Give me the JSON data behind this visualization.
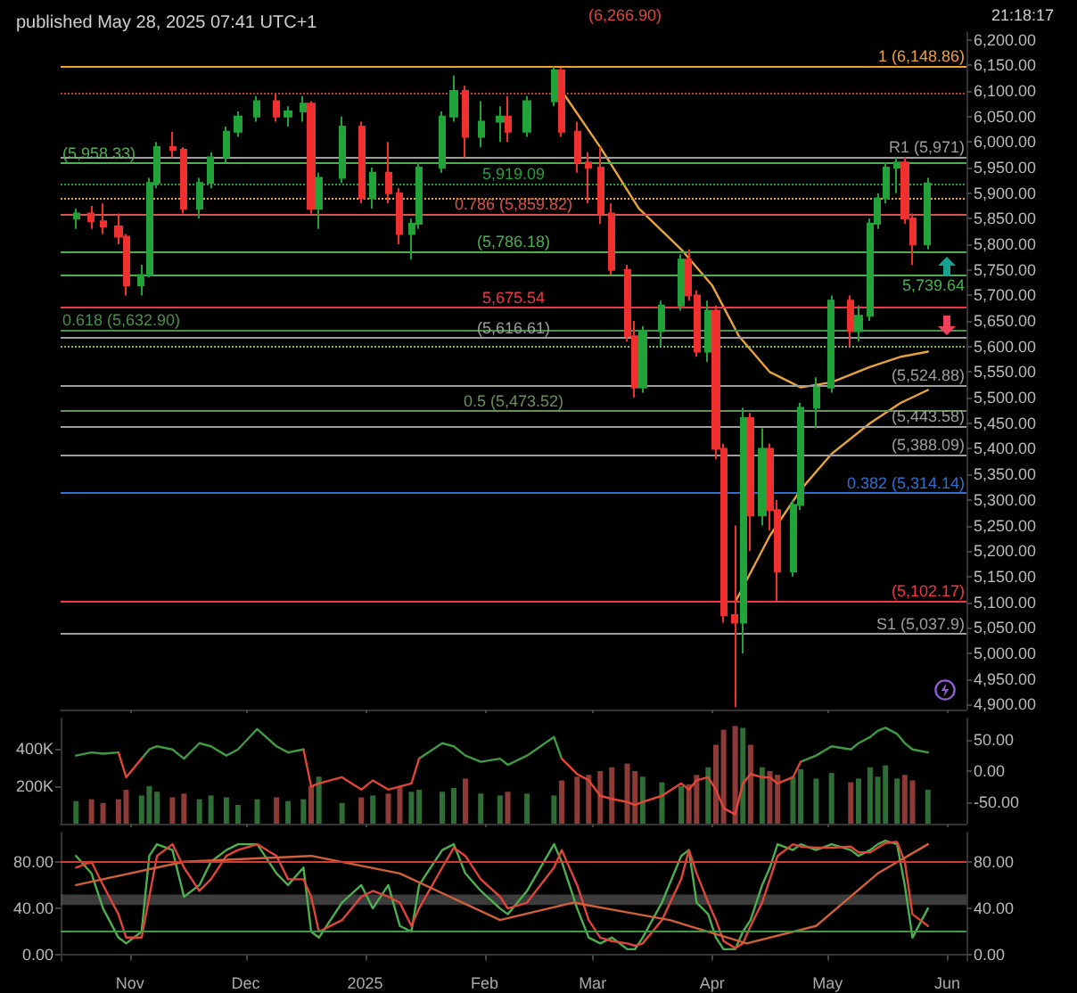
{
  "chart_data": [
    {
      "type": "candlestick",
      "title": "published May 28, 2025 07:41 UTC+1",
      "annotations": [
        "(6,266.90)",
        "21:18:17"
      ],
      "x": [
        "2024-10-18",
        "2024-10-22",
        "2024-10-25",
        "2024-10-29",
        "2024-10-31",
        "2024-11-04",
        "2024-11-06",
        "2024-11-08",
        "2024-11-12",
        "2024-11-15",
        "2024-11-19",
        "2024-11-22",
        "2024-11-26",
        "2024-11-29",
        "2024-12-04",
        "2024-12-09",
        "2024-12-12",
        "2024-12-16",
        "2024-12-18",
        "2024-12-20",
        "2024-12-26",
        "2024-12-31",
        "2025-01-03",
        "2025-01-07",
        "2025-01-10",
        "2025-01-13",
        "2025-01-15",
        "2025-01-21",
        "2025-01-24",
        "2025-01-27",
        "2025-01-31",
        "2025-02-05",
        "2025-02-07",
        "2025-02-12",
        "2025-02-19",
        "2025-02-21",
        "2025-02-25",
        "2025-02-28",
        "2025-03-03",
        "2025-03-06",
        "2025-03-10",
        "2025-03-12",
        "2025-03-14",
        "2025-03-19",
        "2025-03-24",
        "2025-03-26",
        "2025-03-28",
        "2025-03-31",
        "2025-04-02",
        "2025-04-04",
        "2025-04-07",
        "2025-04-09",
        "2025-04-11",
        "2025-04-14",
        "2025-04-16",
        "2025-04-18",
        "2025-04-22",
        "2025-04-24",
        "2025-04-28",
        "2025-05-02",
        "2025-05-07",
        "2025-05-09",
        "2025-05-12",
        "2025-05-14",
        "2025-05-16",
        "2025-05-19",
        "2025-05-21",
        "2025-05-23",
        "2025-05-27"
      ],
      "xlim": [
        "2024-10-14",
        "2025-06-06"
      ],
      "xticks": [
        {
          "value": "2024-11-01",
          "label": null
        },
        {
          "value": "2024-12-01",
          "label": null
        },
        {
          "value": "2025-01-01",
          "label": null
        },
        {
          "value": "2025-02-01",
          "label": null
        },
        {
          "value": "2025-03-01",
          "label": null
        },
        {
          "value": "2025-04-01",
          "label": null
        },
        {
          "value": "2025-05-01",
          "label": null
        },
        {
          "value": "2025-06-01",
          "label": null
        }
      ],
      "ylim": [
        4890,
        6215
      ],
      "yticks": [
        {
          "value": 4900,
          "label": "4,900.00"
        },
        {
          "value": 4950,
          "label": "4,950.00"
        },
        {
          "value": 5000,
          "label": "5,000.00"
        },
        {
          "value": 5050,
          "label": "5,050.00"
        },
        {
          "value": 5100,
          "label": "5,100.00"
        },
        {
          "value": 5150,
          "label": "5,150.00"
        },
        {
          "value": 5200,
          "label": "5,200.00"
        },
        {
          "value": 5250,
          "label": "5,250.00"
        },
        {
          "value": 5300,
          "label": "5,300.00"
        },
        {
          "value": 5350,
          "label": "5,350.00"
        },
        {
          "value": 5400,
          "label": "5,400.00"
        },
        {
          "value": 5450,
          "label": "5,450.00"
        },
        {
          "value": 5500,
          "label": "5,500.00"
        },
        {
          "value": 5550,
          "label": "5,550.00"
        },
        {
          "value": 5600,
          "label": "5,600.00"
        },
        {
          "value": 5650,
          "label": "5,650.00"
        },
        {
          "value": 5700,
          "label": "5,700.00"
        },
        {
          "value": 5750,
          "label": "5,750.00"
        },
        {
          "value": 5800,
          "label": "5,800.00"
        },
        {
          "value": 5850,
          "label": "5,850.00"
        },
        {
          "value": 5900,
          "label": "5,900.00"
        },
        {
          "value": 5950,
          "label": "5,950.00"
        },
        {
          "value": 6000,
          "label": "6,000.00"
        },
        {
          "value": 6050,
          "label": "6,050.00"
        },
        {
          "value": 6100,
          "label": "6,100.00"
        },
        {
          "value": 6150,
          "label": "6,150.00"
        },
        {
          "value": 6200,
          "label": "6,200.00"
        }
      ],
      "tick_labels": "y",
      "ref_lines": [
        {
          "axis": "y",
          "value": 5919.09,
          "label": "5,919.09",
          "color": "#22a33a",
          "line_style": "dotted"
        },
        {
          "axis": "y",
          "value": 5739.64,
          "label": "5,739.64",
          "color": "#4caf50",
          "line_style": "solid"
        },
        {
          "axis": "y",
          "value": 5675.54,
          "label": "5,675.54",
          "color": "#f23645",
          "line_style": "solid"
        },
        {
          "axis": "y",
          "value": 5971,
          "label": "R1 (5,971)",
          "color": "#9e9e9e",
          "line_style": "solid"
        },
        {
          "axis": "y",
          "value": 5958.33,
          "label": "(5,958.33)",
          "color": "#4caf50",
          "line_style": "solid"
        },
        {
          "axis": "y",
          "value": 5786.18,
          "label": "(5,786.18)",
          "color": "#4caf50",
          "line_style": "solid"
        },
        {
          "axis": "y",
          "value": 5616.61,
          "label": "(5,616.61)",
          "color": "#9e9e9e",
          "line_style": "solid"
        },
        {
          "axis": "y",
          "value": 5524.88,
          "label": "(5,524.88)",
          "color": "#9e9e9e",
          "line_style": "solid"
        },
        {
          "axis": "y",
          "value": 5443.58,
          "label": "(5,443.58)",
          "color": "#9e9e9e",
          "line_style": "solid"
        },
        {
          "axis": "y",
          "value": 5388.09,
          "label": "(5,388.09)",
          "color": "#9e9e9e",
          "line_style": "solid"
        },
        {
          "axis": "y",
          "value": 5102.17,
          "label": "(5,102.17)",
          "color": "#f23645",
          "line_style": "solid"
        },
        {
          "axis": "y",
          "value": 5037.9,
          "label": "S1 (5,037.9)",
          "color": "#9e9e9e",
          "line_style": "solid"
        },
        {
          "axis": "y",
          "value": 6148.86,
          "label": "1 (6,148.86)",
          "color": "#f0a030",
          "line_style": "solid"
        },
        {
          "axis": "y",
          "value": 5859.82,
          "label": "0.786 (5,859.82)",
          "color": "#d9534f",
          "line_style": "solid"
        },
        {
          "axis": "y",
          "value": 5632.9,
          "label": "0.618 (5,632.90)",
          "color": "#4a8f4a",
          "line_style": "solid"
        },
        {
          "axis": "y",
          "value": 5473.52,
          "label": "0.5 (5,473.52)",
          "color": "#6a8f5a",
          "line_style": "solid"
        },
        {
          "axis": "y",
          "value": 5314.14,
          "label": "0.382 (5,314.14)",
          "color": "#2f6fd0",
          "line_style": "solid"
        },
        {
          "axis": "y",
          "value": 6095,
          "label": null,
          "color": "#c0392b",
          "line_style": "dotted"
        },
        {
          "axis": "y",
          "value": 5890,
          "label": null,
          "color": "#e6a23c",
          "line_style": "dotted"
        },
        {
          "axis": "y",
          "value": 5600,
          "label": null,
          "color": "#7cb342",
          "line_style": "dotted"
        }
      ],
      "series": [
        {
          "type": "candlestick",
          "ohlc": [
            [
              5850,
              5870,
              5830,
              5860
            ],
            [
              5860,
              5875,
              5830,
              5845
            ],
            [
              5845,
              5880,
              5820,
              5835
            ],
            [
              5835,
              5860,
              5800,
              5815
            ],
            [
              5815,
              5820,
              5700,
              5720
            ],
            [
              5720,
              5760,
              5700,
              5740
            ],
            [
              5740,
              5930,
              5735,
              5920
            ],
            [
              5920,
              6000,
              5910,
              5990
            ],
            [
              5990,
              6020,
              5970,
              5985
            ],
            [
              5985,
              5990,
              5860,
              5870
            ],
            [
              5870,
              5930,
              5850,
              5920
            ],
            [
              5920,
              5980,
              5910,
              5970
            ],
            [
              5970,
              6030,
              5960,
              6020
            ],
            [
              6020,
              6060,
              6010,
              6050
            ],
            [
              6050,
              6090,
              6040,
              6080
            ],
            [
              6080,
              6095,
              6040,
              6050
            ],
            [
              6050,
              6070,
              6030,
              6060
            ],
            [
              6060,
              6090,
              6040,
              6075
            ],
            [
              6075,
              6080,
              5860,
              5870
            ],
            [
              5870,
              5940,
              5830,
              5930
            ],
            [
              5930,
              6050,
              5920,
              6030
            ],
            [
              6030,
              6040,
              5880,
              5890
            ],
            [
              5890,
              5950,
              5870,
              5940
            ],
            [
              5940,
              6000,
              5880,
              5900
            ],
            [
              5900,
              5910,
              5800,
              5820
            ],
            [
              5820,
              5850,
              5770,
              5840
            ],
            [
              5840,
              5960,
              5830,
              5950
            ],
            [
              5950,
              6060,
              5940,
              6050
            ],
            [
              6050,
              6130,
              6040,
              6100
            ],
            [
              6100,
              6110,
              5970,
              6010
            ],
            [
              6010,
              6080,
              5990,
              6040
            ],
            [
              6040,
              6070,
              6000,
              6050
            ],
            [
              6050,
              6090,
              6000,
              6020
            ],
            [
              6020,
              6090,
              6010,
              6080
            ],
            [
              6080,
              6147,
              6070,
              6140
            ],
            [
              6140,
              6145,
              6010,
              6020
            ],
            [
              6020,
              6040,
              5940,
              5960
            ],
            [
              5960,
              5980,
              5880,
              5950
            ],
            [
              5950,
              5990,
              5840,
              5860
            ],
            [
              5860,
              5880,
              5740,
              5750
            ],
            [
              5750,
              5760,
              5610,
              5620
            ],
            [
              5620,
              5650,
              5500,
              5520
            ],
            [
              5520,
              5640,
              5510,
              5630
            ],
            [
              5630,
              5690,
              5600,
              5680
            ],
            [
              5680,
              5780,
              5670,
              5770
            ],
            [
              5770,
              5790,
              5690,
              5700
            ],
            [
              5700,
              5710,
              5580,
              5590
            ],
            [
              5590,
              5690,
              5570,
              5670
            ],
            [
              5670,
              5680,
              5380,
              5400
            ],
            [
              5400,
              5410,
              5060,
              5075
            ],
            [
              5075,
              5250,
              4895,
              5060
            ],
            [
              5060,
              5480,
              5000,
              5460
            ],
            [
              5460,
              5470,
              5200,
              5270
            ],
            [
              5270,
              5440,
              5250,
              5400
            ],
            [
              5400,
              5410,
              5240,
              5280
            ],
            [
              5280,
              5300,
              5100,
              5160
            ],
            [
              5160,
              5300,
              5150,
              5290
            ],
            [
              5290,
              5490,
              5280,
              5480
            ],
            [
              5480,
              5540,
              5440,
              5520
            ],
            [
              5520,
              5700,
              5510,
              5690
            ],
            [
              5690,
              5700,
              5600,
              5630
            ],
            [
              5630,
              5680,
              5610,
              5660
            ],
            [
              5660,
              5850,
              5650,
              5840
            ],
            [
              5840,
              5900,
              5830,
              5890
            ],
            [
              5890,
              5960,
              5880,
              5950
            ],
            [
              5950,
              5970,
              5900,
              5960
            ],
            [
              5960,
              5970,
              5840,
              5850
            ],
            [
              5850,
              5860,
              5760,
              5800
            ],
            [
              5800,
              5930,
              5790,
              5919
            ]
          ],
          "colors": [
            "#22a33a",
            "#f0302e",
            "#f0302e",
            "#f0302e",
            "#f0302e",
            "#22a33a",
            "#22a33a",
            "#22a33a",
            "#f0302e",
            "#f0302e",
            "#22a33a",
            "#22a33a",
            "#22a33a",
            "#22a33a",
            "#22a33a",
            "#f0302e",
            "#22a33a",
            "#22a33a",
            "#f0302e",
            "#22a33a",
            "#22a33a",
            "#f0302e",
            "#22a33a",
            "#f0302e",
            "#f0302e",
            "#22a33a",
            "#22a33a",
            "#22a33a",
            "#22a33a",
            "#f0302e",
            "#22a33a",
            "#22a33a",
            "#f0302e",
            "#22a33a",
            "#22a33a",
            "#f0302e",
            "#f0302e",
            "#f0302e",
            "#f0302e",
            "#f0302e",
            "#f0302e",
            "#f0302e",
            "#22a33a",
            "#22a33a",
            "#22a33a",
            "#f0302e",
            "#f0302e",
            "#22a33a",
            "#f0302e",
            "#f0302e",
            "#f0302e",
            "#22a33a",
            "#f0302e",
            "#22a33a",
            "#f0302e",
            "#f0302e",
            "#22a33a",
            "#22a33a",
            "#22a33a",
            "#22a33a",
            "#f0302e",
            "#22a33a",
            "#22a33a",
            "#22a33a",
            "#22a33a",
            "#22a33a",
            "#f0302e",
            "#f0302e",
            "#22a33a"
          ]
        },
        {
          "type": "line",
          "color": "#e8a33a",
          "x": [
            "2025-02-21",
            "2025-03-03",
            "2025-03-13",
            "2025-03-24",
            "2025-04-01",
            "2025-04-08",
            "2025-04-16",
            "2025-04-24",
            "2025-05-02",
            "2025-05-12",
            "2025-05-20",
            "2025-05-27"
          ],
          "values": [
            6100,
            5990,
            5870,
            5790,
            5720,
            5620,
            5550,
            5520,
            5530,
            5560,
            5580,
            5590
          ]
        },
        {
          "type": "line",
          "color": "#e8a33a",
          "x": [
            "2025-04-07",
            "2025-04-16",
            "2025-04-24",
            "2025-05-02",
            "2025-05-12",
            "2025-05-20",
            "2025-05-27"
          ],
          "values": [
            5100,
            5230,
            5320,
            5390,
            5450,
            5490,
            5515
          ]
        }
      ]
    },
    {
      "type": "bar",
      "x": [
        "2024-10-18",
        "2024-10-22",
        "2024-10-25",
        "2024-10-29",
        "2024-10-31",
        "2024-11-04",
        "2024-11-06",
        "2024-11-08",
        "2024-11-12",
        "2024-11-15",
        "2024-11-19",
        "2024-11-22",
        "2024-11-26",
        "2024-11-29",
        "2024-12-04",
        "2024-12-09",
        "2024-12-12",
        "2024-12-16",
        "2024-12-18",
        "2024-12-20",
        "2024-12-26",
        "2024-12-31",
        "2025-01-03",
        "2025-01-07",
        "2025-01-10",
        "2025-01-13",
        "2025-01-15",
        "2025-01-21",
        "2025-01-24",
        "2025-01-27",
        "2025-01-31",
        "2025-02-05",
        "2025-02-07",
        "2025-02-12",
        "2025-02-19",
        "2025-02-21",
        "2025-02-25",
        "2025-02-28",
        "2025-03-03",
        "2025-03-06",
        "2025-03-10",
        "2025-03-12",
        "2025-03-14",
        "2025-03-19",
        "2025-03-24",
        "2025-03-26",
        "2025-03-28",
        "2025-03-31",
        "2025-04-02",
        "2025-04-04",
        "2025-04-07",
        "2025-04-09",
        "2025-04-11",
        "2025-04-14",
        "2025-04-16",
        "2025-04-18",
        "2025-04-22",
        "2025-04-24",
        "2025-04-28",
        "2025-05-02",
        "2025-05-07",
        "2025-05-09",
        "2025-05-12",
        "2025-05-14",
        "2025-05-16",
        "2025-05-19",
        "2025-05-21",
        "2025-05-23",
        "2025-05-27"
      ],
      "xlim": [
        "2024-10-14",
        "2025-06-06"
      ],
      "xticks": [
        {
          "value": "2024-11-01",
          "label": null
        },
        {
          "value": "2024-12-01",
          "label": null
        },
        {
          "value": "2025-01-01",
          "label": null
        },
        {
          "value": "2025-02-01",
          "label": null
        },
        {
          "value": "2025-03-01",
          "label": null
        },
        {
          "value": "2025-04-01",
          "label": null
        },
        {
          "value": "2025-05-01",
          "label": null
        },
        {
          "value": "2025-06-01",
          "label": null
        }
      ],
      "ylim": [
        0,
        560000
      ],
      "yticks": [
        {
          "value": 200000,
          "label": "200K"
        },
        {
          "value": 400000,
          "label": "400K"
        }
      ],
      "y2lim": [
        -85,
        85
      ],
      "y2ticks": [
        {
          "value": -50,
          "label": "-50.00"
        },
        {
          "value": 0,
          "label": "0.00"
        },
        {
          "value": 50,
          "label": "50.00"
        }
      ],
      "tick_labels": "y",
      "series": [
        {
          "type": "bar",
          "values": [
            120000,
            130000,
            110000,
            130000,
            180000,
            150000,
            200000,
            170000,
            140000,
            160000,
            130000,
            150000,
            140000,
            100000,
            130000,
            140000,
            120000,
            130000,
            200000,
            250000,
            110000,
            140000,
            150000,
            160000,
            200000,
            170000,
            180000,
            170000,
            190000,
            240000,
            160000,
            150000,
            170000,
            160000,
            150000,
            230000,
            250000,
            260000,
            280000,
            300000,
            320000,
            280000,
            250000,
            220000,
            200000,
            210000,
            260000,
            300000,
            420000,
            500000,
            520000,
            510000,
            420000,
            300000,
            280000,
            260000,
            250000,
            290000,
            240000,
            270000,
            220000,
            240000,
            300000,
            250000,
            310000,
            240000,
            260000,
            230000,
            180000
          ],
          "colors": [
            "#2f6d36",
            "#8e3b37",
            "#8e3b37",
            "#8e3b37",
            "#8e3b37",
            "#2f6d36",
            "#2f6d36",
            "#2f6d36",
            "#8e3b37",
            "#8e3b37",
            "#2f6d36",
            "#2f6d36",
            "#2f6d36",
            "#2f6d36",
            "#2f6d36",
            "#8e3b37",
            "#2f6d36",
            "#2f6d36",
            "#8e3b37",
            "#2f6d36",
            "#2f6d36",
            "#8e3b37",
            "#2f6d36",
            "#8e3b37",
            "#8e3b37",
            "#2f6d36",
            "#2f6d36",
            "#2f6d36",
            "#2f6d36",
            "#8e3b37",
            "#2f6d36",
            "#2f6d36",
            "#8e3b37",
            "#2f6d36",
            "#2f6d36",
            "#8e3b37",
            "#8e3b37",
            "#8e3b37",
            "#8e3b37",
            "#8e3b37",
            "#8e3b37",
            "#8e3b37",
            "#2f6d36",
            "#2f6d36",
            "#2f6d36",
            "#8e3b37",
            "#8e3b37",
            "#2f6d36",
            "#8e3b37",
            "#8e3b37",
            "#8e3b37",
            "#2f6d36",
            "#8e3b37",
            "#2f6d36",
            "#8e3b37",
            "#8e3b37",
            "#2f6d36",
            "#2f6d36",
            "#2f6d36",
            "#2f6d36",
            "#8e3b37",
            "#2f6d36",
            "#2f6d36",
            "#2f6d36",
            "#2f6d36",
            "#2f6d36",
            "#8e3b37",
            "#8e3b37",
            "#2f6d36"
          ]
        },
        {
          "type": "line",
          "axis": "y2",
          "color": "#3f9a45",
          "values": [
            25,
            30,
            28,
            30,
            null,
            20,
            35,
            40,
            35,
            20,
            45,
            40,
            25,
            35,
            68,
            40,
            30,
            35,
            null,
            null,
            null,
            null,
            null,
            null,
            null,
            null,
            20,
            45,
            40,
            25,
            15,
            20,
            10,
            25,
            55,
            20,
            null,
            null,
            null,
            null,
            null,
            null,
            null,
            null,
            null,
            null,
            null,
            null,
            null,
            null,
            null,
            null,
            null,
            null,
            null,
            null,
            null,
            15,
            25,
            40,
            35,
            45,
            55,
            65,
            70,
            60,
            45,
            35,
            30
          ]
        },
        {
          "type": "line",
          "axis": "y2",
          "color": "#e0453a",
          "values": [
            null,
            null,
            null,
            30,
            -10,
            20,
            null,
            null,
            null,
            null,
            null,
            null,
            null,
            null,
            null,
            null,
            null,
            35,
            -25,
            -20,
            -10,
            -30,
            -15,
            -30,
            -25,
            -20,
            20,
            null,
            null,
            null,
            null,
            null,
            null,
            null,
            null,
            20,
            -5,
            -15,
            -40,
            -45,
            -50,
            -55,
            -50,
            -40,
            -20,
            -30,
            -15,
            -10,
            -30,
            -60,
            -70,
            -20,
            -5,
            -10,
            -10,
            -20,
            -10,
            15,
            null,
            null,
            null,
            null,
            null,
            null,
            null,
            null,
            null,
            null,
            null
          ]
        }
      ]
    },
    {
      "type": "line",
      "x": [
        "2024-10-18",
        "2024-10-22",
        "2024-10-25",
        "2024-10-29",
        "2024-10-31",
        "2024-11-04",
        "2024-11-06",
        "2024-11-08",
        "2024-11-12",
        "2024-11-15",
        "2024-11-19",
        "2024-11-22",
        "2024-11-26",
        "2024-11-29",
        "2024-12-04",
        "2024-12-09",
        "2024-12-12",
        "2024-12-16",
        "2024-12-18",
        "2024-12-20",
        "2024-12-26",
        "2024-12-31",
        "2025-01-03",
        "2025-01-07",
        "2025-01-10",
        "2025-01-13",
        "2025-01-15",
        "2025-01-21",
        "2025-01-24",
        "2025-01-27",
        "2025-01-31",
        "2025-02-05",
        "2025-02-07",
        "2025-02-12",
        "2025-02-19",
        "2025-02-21",
        "2025-02-25",
        "2025-02-28",
        "2025-03-03",
        "2025-03-06",
        "2025-03-10",
        "2025-03-12",
        "2025-03-14",
        "2025-03-19",
        "2025-03-24",
        "2025-03-26",
        "2025-03-28",
        "2025-03-31",
        "2025-04-02",
        "2025-04-04",
        "2025-04-07",
        "2025-04-09",
        "2025-04-11",
        "2025-04-14",
        "2025-04-16",
        "2025-04-18",
        "2025-04-22",
        "2025-04-24",
        "2025-04-28",
        "2025-05-02",
        "2025-05-07",
        "2025-05-09",
        "2025-05-12",
        "2025-05-14",
        "2025-05-16",
        "2025-05-19",
        "2025-05-21",
        "2025-05-23",
        "2025-05-27"
      ],
      "xlim": [
        "2024-10-14",
        "2025-06-06"
      ],
      "xticks": [
        {
          "value": "2024-11-01",
          "label": "Nov"
        },
        {
          "value": "2024-12-01",
          "label": "Dec"
        },
        {
          "value": "2025-01-01",
          "label": "2025"
        },
        {
          "value": "2025-02-01",
          "label": "Feb"
        },
        {
          "value": "2025-03-01",
          "label": "Mar"
        },
        {
          "value": "2025-04-01",
          "label": "Apr"
        },
        {
          "value": "2025-05-01",
          "label": "May"
        },
        {
          "value": "2025-06-01",
          "label": "Jun"
        }
      ],
      "ylim": [
        -5,
        105
      ],
      "yticks": [
        {
          "value": 0,
          "label": "0.00"
        },
        {
          "value": 40,
          "label": "40.00"
        },
        {
          "value": 80,
          "label": "80.00"
        }
      ],
      "y2lim": [
        -5,
        105
      ],
      "y2ticks": [
        {
          "value": 0,
          "label": "0.00"
        },
        {
          "value": 40,
          "label": "40.00"
        },
        {
          "value": 80,
          "label": "80.00"
        }
      ],
      "ref_lines": [
        {
          "axis": "y",
          "value": 80,
          "label": null,
          "color": "#d23c32",
          "line_style": "solid"
        },
        {
          "axis": "y",
          "value": 20,
          "label": null,
          "color": "#3f9a45",
          "line_style": "solid"
        }
      ],
      "bands": [
        {
          "axis": "y",
          "from": 43,
          "to": 52,
          "label": null,
          "color": "#555555"
        }
      ],
      "series": [
        {
          "color": "#4caf50",
          "values": [
            85,
            70,
            40,
            15,
            10,
            20,
            85,
            95,
            90,
            50,
            60,
            80,
            90,
            95,
            95,
            70,
            60,
            75,
            20,
            15,
            45,
            60,
            40,
            60,
            25,
            20,
            60,
            90,
            95,
            70,
            55,
            40,
            35,
            55,
            95,
            80,
            40,
            15,
            10,
            15,
            5,
            5,
            15,
            45,
            85,
            90,
            45,
            35,
            15,
            5,
            5,
            20,
            30,
            60,
            75,
            95,
            90,
            95,
            90,
            95,
            90,
            85,
            90,
            95,
            98,
            95,
            60,
            15,
            40
          ]
        },
        {
          "color": "#e0453a",
          "values": [
            75,
            80,
            60,
            35,
            15,
            15,
            50,
            85,
            95,
            75,
            55,
            65,
            85,
            90,
            95,
            85,
            65,
            65,
            50,
            20,
            30,
            50,
            55,
            50,
            45,
            25,
            40,
            75,
            92,
            85,
            65,
            50,
            40,
            45,
            75,
            90,
            60,
            30,
            15,
            12,
            10,
            8,
            10,
            30,
            65,
            90,
            70,
            45,
            30,
            12,
            6,
            10,
            25,
            45,
            65,
            85,
            95,
            93,
            92,
            92,
            93,
            88,
            88,
            92,
            96,
            97,
            80,
            35,
            25
          ]
        },
        {
          "color": "#d0603a",
          "x": [
            "2024-10-18",
            "2024-11-15",
            "2024-12-18",
            "2025-01-10",
            "2025-02-05",
            "2025-02-24",
            "2025-03-21",
            "2025-04-10",
            "2025-04-28",
            "2025-05-14",
            "2025-05-27"
          ],
          "values": [
            60,
            80,
            85,
            70,
            30,
            45,
            30,
            10,
            25,
            70,
            95
          ]
        }
      ]
    }
  ]
}
